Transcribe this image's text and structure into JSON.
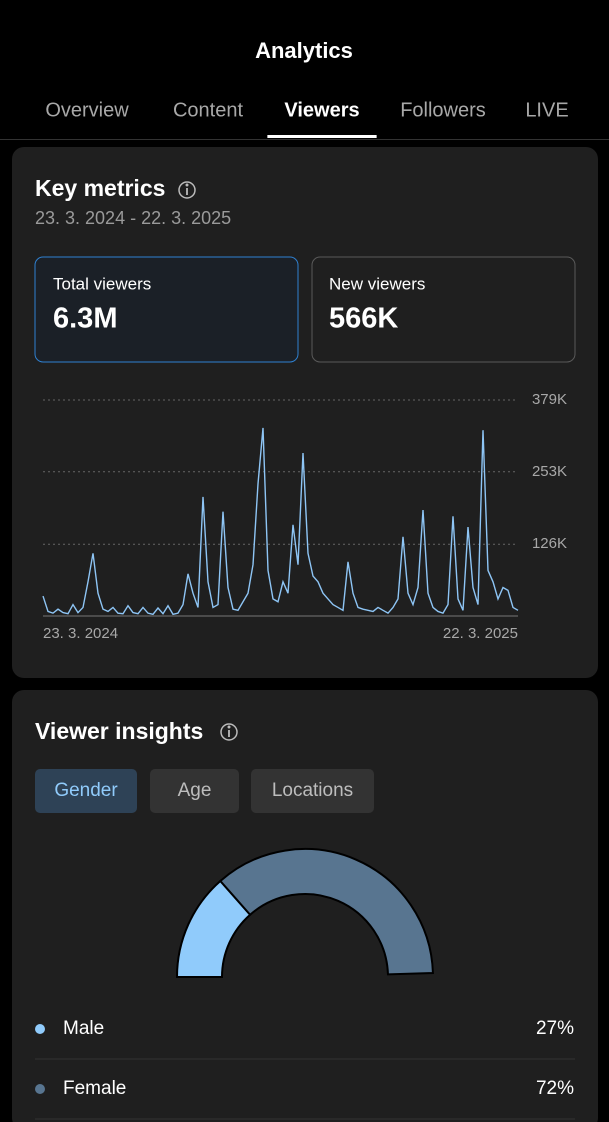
{
  "header": {
    "title": "Analytics"
  },
  "tabs": [
    "Overview",
    "Content",
    "Viewers",
    "Followers",
    "LIVE"
  ],
  "key_metrics": {
    "title": "Key metrics",
    "date_range": "23. 3. 2024 - 22. 3. 2025",
    "metrics": [
      {
        "label": "Total viewers",
        "value": "6.3M"
      },
      {
        "label": "New viewers",
        "value": "566K"
      }
    ],
    "chart_data": {
      "type": "line",
      "categories": [
        "23. 3. 2024",
        null,
        null,
        null,
        null,
        null,
        null,
        null,
        null,
        null,
        null,
        null,
        null,
        null,
        null,
        null,
        null,
        null,
        null,
        null,
        null,
        null,
        null,
        null,
        null,
        null,
        null,
        null,
        null,
        null,
        null,
        null,
        null,
        null,
        null,
        null,
        null,
        null,
        null,
        null,
        null,
        null,
        null,
        null,
        null,
        null,
        null,
        null,
        null,
        null,
        null,
        null,
        null,
        null,
        null,
        null,
        null,
        null,
        null,
        null,
        null,
        null,
        null,
        null,
        null,
        null,
        null,
        null,
        null,
        null,
        null,
        null,
        null,
        null,
        null,
        null,
        null,
        null,
        null,
        null,
        null,
        null,
        null,
        null,
        null,
        null,
        null,
        null,
        null,
        null,
        null,
        null,
        null,
        null,
        null,
        "22. 3. 2025"
      ],
      "series": [
        {
          "color": "#8ec5f5",
          "values": [
            35000,
            8000,
            5000,
            12000,
            6000,
            4000,
            20000,
            6000,
            15000,
            60000,
            110000,
            40000,
            12000,
            8000,
            15000,
            5000,
            4000,
            18000,
            6000,
            4000,
            15000,
            5000,
            3000,
            14000,
            4000,
            18000,
            3000,
            5000,
            20000,
            74000,
            40000,
            15000,
            209000,
            60000,
            15000,
            20000,
            183000,
            50000,
            12000,
            10000,
            25000,
            40000,
            90000,
            232000,
            330000,
            80000,
            30000,
            25000,
            60000,
            40000,
            160000,
            90000,
            286000,
            110000,
            70000,
            60000,
            40000,
            30000,
            20000,
            15000,
            10000,
            95000,
            40000,
            15000,
            12000,
            10000,
            8000,
            15000,
            10000,
            5000,
            15000,
            30000,
            139000,
            40000,
            20000,
            50000,
            186000,
            40000,
            15000,
            8000,
            5000,
            20000,
            175000,
            30000,
            10000,
            156000,
            50000,
            20000,
            326000,
            80000,
            60000,
            30000,
            50000,
            45000,
            15000,
            10000
          ]
        }
      ],
      "ylim": [
        0,
        379000
      ],
      "yticks": [
        {
          "value": 126000,
          "label": "126K"
        },
        {
          "value": 253000,
          "label": "253K"
        },
        {
          "value": 379000,
          "label": "379K"
        }
      ],
      "grid": true
    }
  },
  "viewer_insights": {
    "title": "Viewer insights",
    "filters": [
      "Gender",
      "Age",
      "Locations"
    ],
    "chart_data": {
      "type": "semi-donut",
      "categories": [
        "Male",
        "Female"
      ],
      "values": [
        27,
        72
      ],
      "value_labels": [
        "27%",
        "72%"
      ],
      "colors": [
        "#90cbfb",
        "#587590"
      ]
    }
  }
}
